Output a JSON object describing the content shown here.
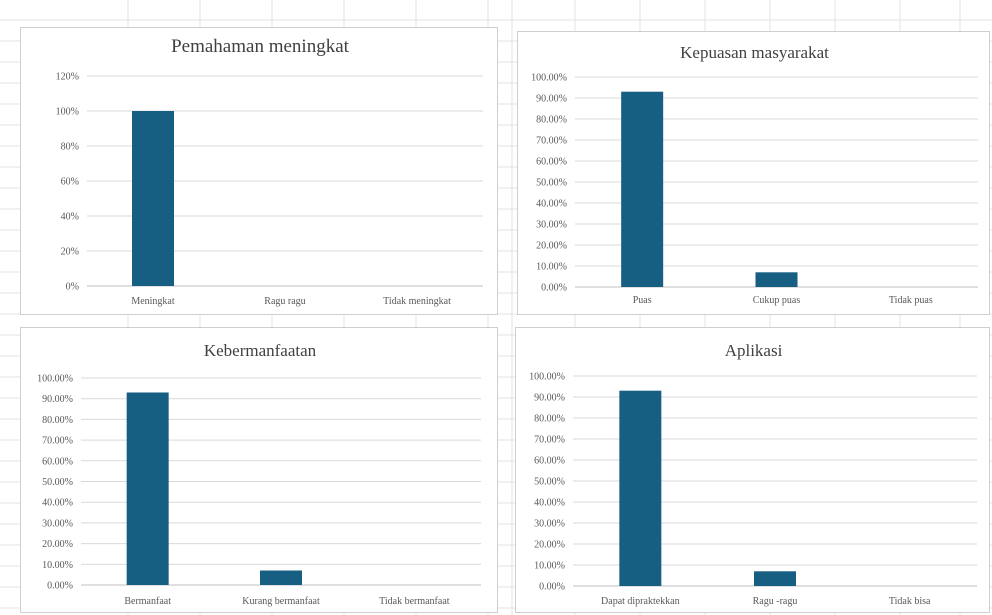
{
  "colors": {
    "bar": "#165e82",
    "gridline": "#d9d9d9",
    "axis": "#bfbfbf",
    "text": "#595959",
    "title": "#404040",
    "sheet_grid": "#e3e3e3"
  },
  "chart_data": [
    {
      "type": "bar",
      "title": "Pemahaman meningkat",
      "categories": [
        "Meningkat",
        "Ragu ragu",
        "Tidak meningkat"
      ],
      "values": [
        1.0,
        0,
        0
      ],
      "ylim": [
        0,
        1.2
      ],
      "yticks": [
        "0%",
        "20%",
        "40%",
        "60%",
        "80%",
        "100%",
        "120%"
      ],
      "grid": true,
      "legend": "none"
    },
    {
      "type": "bar",
      "title": "Kepuasan masyarakat",
      "categories": [
        "Puas",
        "Cukup puas",
        "Tidak puas"
      ],
      "values": [
        0.93,
        0.07,
        0
      ],
      "ylim": [
        0,
        1.0
      ],
      "yticks": [
        "0.00%",
        "10.00%",
        "20.00%",
        "30.00%",
        "40.00%",
        "50.00%",
        "60.00%",
        "70.00%",
        "80.00%",
        "90.00%",
        "100.00%"
      ],
      "grid": true,
      "legend": "none"
    },
    {
      "type": "bar",
      "title": "Kebermanfaatan",
      "categories": [
        "Bermanfaat",
        "Kurang bermanfaat",
        "Tidak bermanfaat"
      ],
      "values": [
        0.93,
        0.07,
        0
      ],
      "ylim": [
        0,
        1.0
      ],
      "yticks": [
        "0.00%",
        "10.00%",
        "20.00%",
        "30.00%",
        "40.00%",
        "50.00%",
        "60.00%",
        "70.00%",
        "80.00%",
        "90.00%",
        "100.00%"
      ],
      "grid": true,
      "legend": "none"
    },
    {
      "type": "bar",
      "title": "Aplikasi",
      "categories": [
        "Dapat dipraktekkan",
        "Ragu -ragu",
        "Tidak bisa"
      ],
      "values": [
        0.93,
        0.07,
        0
      ],
      "ylim": [
        0,
        1.0
      ],
      "yticks": [
        "0.00%",
        "10.00%",
        "20.00%",
        "30.00%",
        "40.00%",
        "50.00%",
        "60.00%",
        "70.00%",
        "80.00%",
        "90.00%",
        "100.00%"
      ],
      "grid": true,
      "legend": "none"
    }
  ]
}
